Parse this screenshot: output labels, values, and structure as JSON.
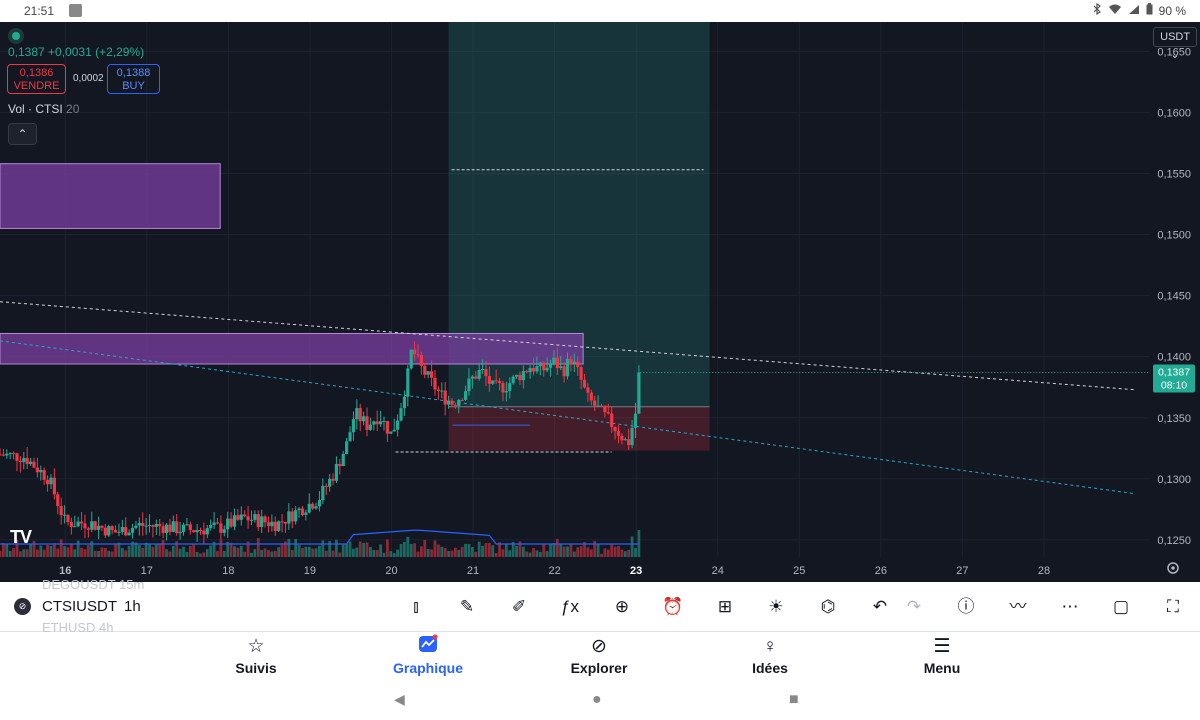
{
  "status_bar": {
    "time": "21:51",
    "battery": "90 %"
  },
  "chart": {
    "last_change": "0,1387  +0,0031 (+2,29%)",
    "sell_price": "0,1386",
    "sell_label": "VENDRE",
    "spread": "0,0002",
    "buy_price": "0,1388",
    "buy_label": "BUY",
    "volume_indicator": "Vol · CTSI",
    "volume_length": "20",
    "currency": "USDT",
    "currency_chevron": "⌄",
    "collapse_glyph": "⌃",
    "logo": "TV",
    "price_tag": {
      "price": "0,1387",
      "countdown": "08:10"
    },
    "colors": {
      "up": "#22ab94",
      "down": "#f23645",
      "background": "#131722",
      "zone": "#7b3fa0",
      "volume_ma": "#2962ff"
    }
  },
  "chart_data": {
    "type": "candlestick",
    "symbol": "CTSIUSDT",
    "interval": "1h",
    "y_ticks": [
      "0,1650",
      "0,1600",
      "0,1550",
      "0,1500",
      "0,1450",
      "0,1400",
      "0,1350",
      "0,1300",
      "0,1250"
    ],
    "ylim": [
      0.1236,
      0.1674
    ],
    "x_ticks": [
      "16",
      "17",
      "18",
      "19",
      "20",
      "21",
      "22",
      "23",
      "24",
      "25",
      "26",
      "27",
      "28"
    ],
    "x_tick_values": [
      16,
      17,
      18,
      19,
      20,
      21,
      22,
      23,
      24,
      25,
      26,
      27,
      28
    ],
    "xlim": [
      15.2,
      29.3
    ],
    "last_price": 0.1387,
    "last_x": 23.05,
    "zones": [
      {
        "x": [
          15.2,
          17.9
        ],
        "y": [
          0.1505,
          0.1558
        ]
      },
      {
        "x": [
          15.2,
          22.35
        ],
        "y": [
          0.1394,
          0.1419
        ]
      }
    ],
    "position": {
      "entry": 0.1359,
      "target": 0.1553,
      "stop": 0.1323,
      "x": [
        20.7,
        23.9
      ]
    },
    "trendlines": [
      {
        "from": [
          15.2,
          0.1445
        ],
        "to": [
          29.1,
          0.1373
        ],
        "style": "dashed-white"
      },
      {
        "from": [
          15.2,
          0.1413
        ],
        "to": [
          29.1,
          0.1288
        ],
        "style": "dashed-blue"
      }
    ],
    "levels": [
      {
        "y": 0.1322,
        "x": [
          20.05,
          22.7
        ]
      },
      {
        "y": 0.1344,
        "x": [
          20.75,
          21.7
        ]
      }
    ],
    "swing_path": [
      [
        15.2,
        0.132
      ],
      [
        15.5,
        0.1318
      ],
      [
        15.8,
        0.13
      ],
      [
        16.0,
        0.1264
      ],
      [
        16.3,
        0.1264
      ],
      [
        16.6,
        0.1256
      ],
      [
        16.9,
        0.1262
      ],
      [
        17.2,
        0.1261
      ],
      [
        17.5,
        0.1258
      ],
      [
        17.9,
        0.126
      ],
      [
        18.2,
        0.1268
      ],
      [
        18.6,
        0.1263
      ],
      [
        18.9,
        0.1276
      ],
      [
        19.1,
        0.1283
      ],
      [
        19.3,
        0.1305
      ],
      [
        19.45,
        0.1328
      ],
      [
        19.55,
        0.1354
      ],
      [
        19.7,
        0.1344
      ],
      [
        19.85,
        0.1352
      ],
      [
        20.0,
        0.1336
      ],
      [
        20.1,
        0.1356
      ],
      [
        20.2,
        0.1385
      ],
      [
        20.25,
        0.1407
      ],
      [
        20.35,
        0.1392
      ],
      [
        20.5,
        0.1378
      ],
      [
        20.6,
        0.1369
      ],
      [
        20.75,
        0.1362
      ],
      [
        20.85,
        0.1368
      ],
      [
        21.0,
        0.1383
      ],
      [
        21.1,
        0.1389
      ],
      [
        21.25,
        0.1374
      ],
      [
        21.4,
        0.1376
      ],
      [
        21.55,
        0.1384
      ],
      [
        21.7,
        0.1392
      ],
      [
        21.85,
        0.1389
      ],
      [
        22.0,
        0.1396
      ],
      [
        22.1,
        0.1388
      ],
      [
        22.2,
        0.1398
      ],
      [
        22.3,
        0.1385
      ],
      [
        22.4,
        0.1366
      ],
      [
        22.55,
        0.1356
      ],
      [
        22.7,
        0.1345
      ],
      [
        22.8,
        0.1337
      ],
      [
        22.9,
        0.1328
      ],
      [
        23.0,
        0.1356
      ],
      [
        23.05,
        0.1387
      ]
    ]
  },
  "toolbar": {
    "ghost_top": "DEGOUSDT  15m",
    "ghost_bottom": "ETHUSD    4h",
    "symbol_icon": "⊘",
    "symbol": "CTSIUSDT",
    "interval": "1h",
    "icons": [
      {
        "name": "candle-type-icon",
        "glyph": "⫾"
      },
      {
        "name": "draw-icon",
        "glyph": "✎"
      },
      {
        "name": "note-icon",
        "glyph": "✐"
      },
      {
        "name": "indicators-icon",
        "glyph": "ƒx"
      },
      {
        "name": "add-icon",
        "glyph": "⊕"
      },
      {
        "name": "alert-icon",
        "glyph": "⏰"
      },
      {
        "name": "layout-icon",
        "glyph": "⊞"
      },
      {
        "name": "ideas-bulb-icon",
        "glyph": "☀"
      },
      {
        "name": "share-icon",
        "glyph": "⌬"
      },
      {
        "name": "undo-icon",
        "glyph": "↶"
      },
      {
        "name": "redo-icon",
        "glyph": "↷"
      },
      {
        "name": "info-icon",
        "glyph": "ⓘ"
      },
      {
        "name": "compare-icon",
        "glyph": "〰"
      },
      {
        "name": "more-icon",
        "glyph": "⋯"
      },
      {
        "name": "window-icon",
        "glyph": "▢"
      },
      {
        "name": "fullscreen-icon",
        "glyph": "⛶"
      }
    ]
  },
  "nav": {
    "items": [
      {
        "label": "Suivis",
        "icon": "☆"
      },
      {
        "label": "Graphique",
        "icon": "▣"
      },
      {
        "label": "Explorer",
        "icon": "⊘"
      },
      {
        "label": "Idées",
        "icon": "♀"
      },
      {
        "label": "Menu",
        "icon": "☰"
      }
    ],
    "active": 1
  },
  "system_nav": {
    "back": "◀",
    "home": "●",
    "recents": "■"
  }
}
